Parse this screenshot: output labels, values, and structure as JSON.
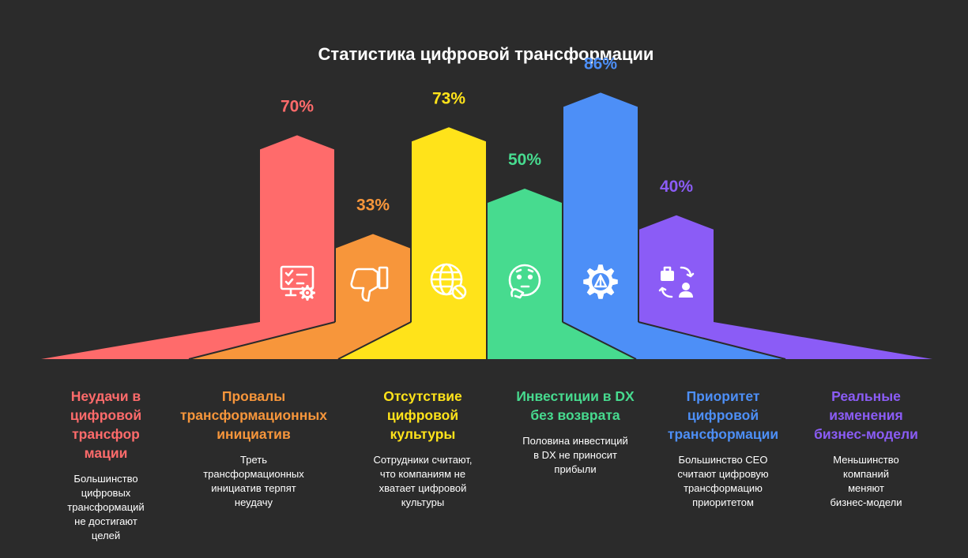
{
  "chart_data": {
    "type": "bar",
    "title": "Статистика цифровой трансформации",
    "ylim": [
      0,
      100
    ],
    "categories": [
      "Неудачи в цифровой трансфор мации",
      "Провалы трансформационных инициатив",
      "Отсутствие цифровой культуры",
      "Инвестиции в DX без возврата",
      "Приоритет цифровой трансформации",
      "Реальные изменения бизнес-модели"
    ],
    "values": [
      70,
      33,
      73,
      50,
      86,
      40
    ],
    "value_labels": [
      "70%",
      "33%",
      "73%",
      "50%",
      "86%",
      "40%"
    ],
    "colors": [
      "#ff6b6b",
      "#f7963b",
      "#ffe31a",
      "#47db8f",
      "#4d8ff7",
      "#8b5cf6"
    ],
    "icons": [
      "checklist-gear-icon",
      "thumbs-down-icon",
      "globe-blocked-icon",
      "thinking-face-icon",
      "gear-arrow-icon",
      "briefcase-person-cycle-icon"
    ]
  },
  "columns": [
    {
      "title_lines": [
        "Неудачи в",
        "цифровой",
        "трансфор",
        "мации"
      ],
      "desc_lines": [
        "Большинство",
        "цифровых",
        "трансформаций",
        "не достигают",
        "целей"
      ]
    },
    {
      "title_lines": [
        "Провалы",
        "трансформационных",
        "инициатив"
      ],
      "desc_lines": [
        "Треть",
        "трансформационных",
        "инициатив терпят",
        "неудачу"
      ]
    },
    {
      "title_lines": [
        "Отсутствие",
        "цифровой",
        "культуры"
      ],
      "desc_lines": [
        "Сотрудники считают,",
        "что компаниям не",
        "хватает цифровой",
        "культуры"
      ]
    },
    {
      "title_lines": [
        "Инвестиции в DX",
        "без возврата"
      ],
      "desc_lines": [
        "Половина инвестиций",
        "в DX не приносит",
        "прибыли"
      ]
    },
    {
      "title_lines": [
        "Приоритет",
        "цифровой",
        "трансформации"
      ],
      "desc_lines": [
        "Большинство CEO",
        "считают цифровую",
        "трансформацию",
        "приоритетом"
      ]
    },
    {
      "title_lines": [
        "Реальные",
        "изменения",
        "бизнес-модели"
      ],
      "desc_lines": [
        "Меньшинство",
        "компаний",
        "меняют",
        "бизнес-модели"
      ]
    }
  ]
}
